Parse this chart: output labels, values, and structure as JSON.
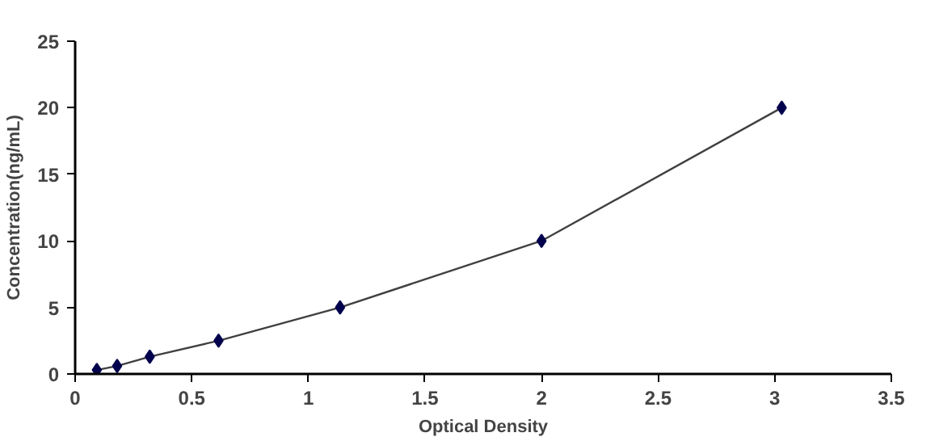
{
  "chart_data": {
    "type": "scatter",
    "xlabel": "Optical Density",
    "ylabel": "Concentration(ng/mL)",
    "x": [
      0.093,
      0.18,
      0.32,
      0.615,
      1.136,
      2.0,
      3.03
    ],
    "series": [
      {
        "type": "line",
        "color": "#404040",
        "marker": "none",
        "values": [
          0.3,
          0.6,
          1.3,
          2.5,
          5,
          10,
          20
        ]
      },
      {
        "color": "#00004d",
        "marker": "diamond",
        "values": [
          0.3,
          0.6,
          1.3,
          2.5,
          5,
          10,
          20
        ]
      }
    ],
    "xlim": [
      0,
      3.5
    ],
    "xticks": [
      0,
      0.5,
      1,
      1.5,
      2,
      2.5,
      3,
      3.5
    ],
    "ylim": [
      0,
      25
    ],
    "yticks": [
      0,
      5,
      10,
      15,
      20,
      25
    ],
    "grid": false
  }
}
